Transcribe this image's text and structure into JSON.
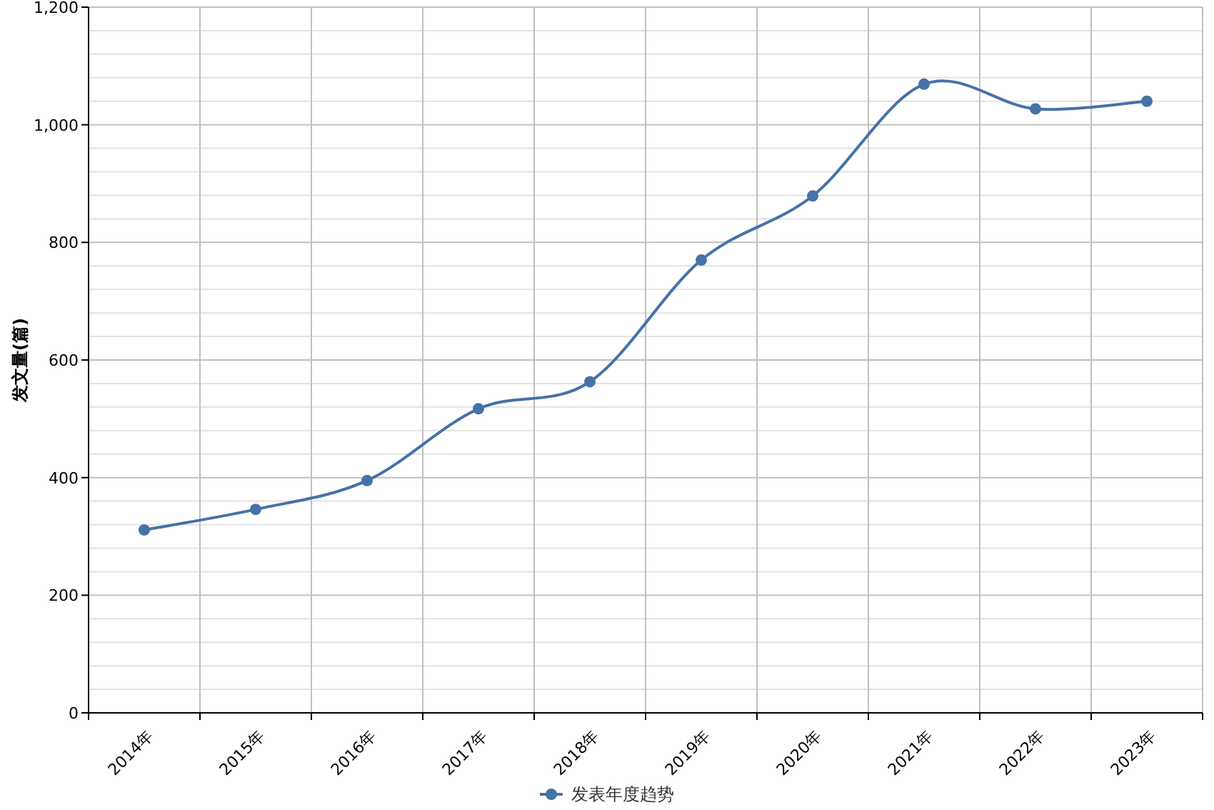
{
  "chart_data": {
    "type": "line",
    "ylabel": "发文量(篇)",
    "categories": [
      "2014年",
      "2015年",
      "2016年",
      "2017年",
      "2018年",
      "2019年",
      "2020年",
      "2021年",
      "2022年",
      "2023年"
    ],
    "series": [
      {
        "name": "发表年度趋势",
        "color": "#4572a7",
        "values": [
          311,
          346,
          395,
          517,
          563,
          770,
          879,
          1069,
          1027,
          1040
        ]
      }
    ],
    "ylim": [
      0,
      1200
    ],
    "yticks": [
      0,
      {
        "value": 40,
        "label": null
      },
      {
        "value": 80,
        "label": null
      },
      {
        "value": 120,
        "label": null
      },
      {
        "value": 160,
        "label": null
      },
      200,
      {
        "value": 240,
        "label": null
      },
      {
        "value": 280,
        "label": null
      },
      {
        "value": 320,
        "label": null
      },
      {
        "value": 360,
        "label": null
      },
      400,
      {
        "value": 440,
        "label": null
      },
      {
        "value": 480,
        "label": null
      },
      {
        "value": 520,
        "label": null
      },
      {
        "value": 560,
        "label": null
      },
      600,
      {
        "value": 640,
        "label": null
      },
      {
        "value": 680,
        "label": null
      },
      {
        "value": 720,
        "label": null
      },
      {
        "value": 760,
        "label": null
      },
      800,
      {
        "value": 840,
        "label": null
      },
      {
        "value": 880,
        "label": null
      },
      {
        "value": 920,
        "label": null
      },
      {
        "value": 960,
        "label": null
      },
      {
        "value": 1000,
        "label": "1,000"
      },
      {
        "value": 1040,
        "label": null
      },
      {
        "value": 1080,
        "label": null
      },
      {
        "value": 1120,
        "label": null
      },
      {
        "value": 1160,
        "label": null
      },
      {
        "value": 1200,
        "label": "1,200"
      }
    ],
    "grid": true,
    "legend": "bottom",
    "marker": "circle",
    "line_style": "solid"
  }
}
